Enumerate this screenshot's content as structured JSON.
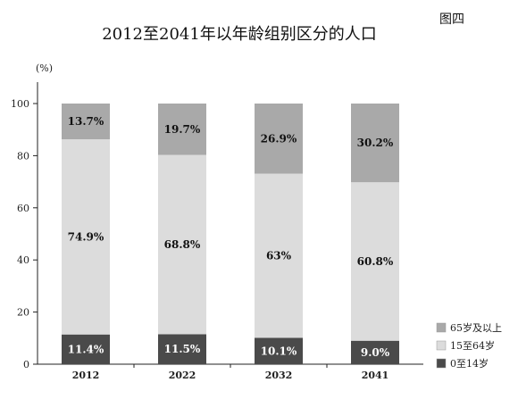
{
  "figure_label": "图四",
  "chart_data": {
    "type": "bar",
    "stacked": true,
    "title": "2012至2041年以年龄组别区分的人口",
    "ylabel": "(%)",
    "xlabel": "",
    "ylim": [
      0,
      100
    ],
    "yticks": [
      0,
      20,
      40,
      60,
      80,
      100
    ],
    "categories": [
      "2012",
      "2022",
      "2032",
      "2041"
    ],
    "legend_position": "bottom-right",
    "series": [
      {
        "name": "0至14岁",
        "color": "#4a4a4a",
        "text_color": "#ffffff",
        "values": [
          11.4,
          11.5,
          10.1,
          9.0
        ],
        "labels": [
          "11.4%",
          "11.5%",
          "10.1%",
          "9.0%"
        ]
      },
      {
        "name": "15至64岁",
        "color": "#dcdcdc",
        "text_color": "#111111",
        "values": [
          74.9,
          68.8,
          63,
          60.8
        ],
        "labels": [
          "74.9%",
          "68.8%",
          "63%",
          "60.8%"
        ]
      },
      {
        "name": "65岁及以上",
        "color": "#a9a9a9",
        "text_color": "#111111",
        "values": [
          13.7,
          19.7,
          26.9,
          30.2
        ],
        "labels": [
          "13.7%",
          "19.7%",
          "26.9%",
          "30.2%"
        ]
      }
    ]
  }
}
